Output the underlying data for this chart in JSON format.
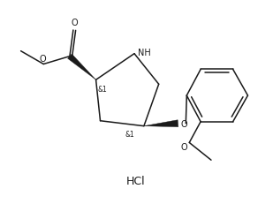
{
  "bg_color": "#ffffff",
  "line_color": "#1a1a1a",
  "text_color": "#1a1a1a",
  "figsize": [
    3.09,
    2.31
  ],
  "dpi": 100,
  "hcl_text": "HCl",
  "nh_text": "NH",
  "o_text": "O",
  "carbonyl_o": "O",
  "methoxy_o": "O",
  "and1_a": "&1",
  "and1_b": "&1",
  "lw": 1.1
}
